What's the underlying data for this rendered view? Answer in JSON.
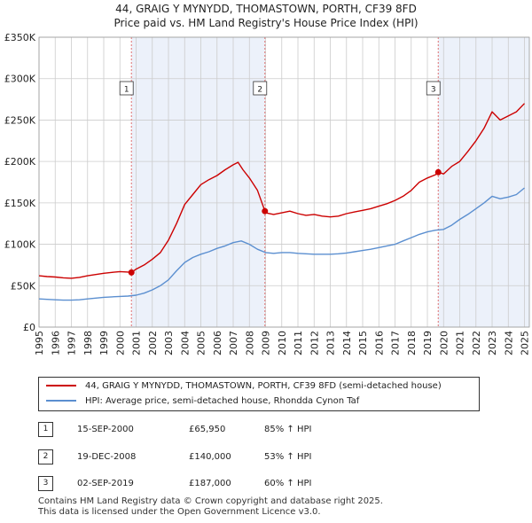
{
  "header": {
    "title_line1": "44, GRAIG Y MYNYDD, THOMASTOWN, PORTH, CF39 8FD",
    "title_line2": "Price paid vs. HM Land Registry's House Price Index (HPI)"
  },
  "colors": {
    "property": "#cc0000",
    "hpi": "#5b8fd0",
    "shade": "#dde6f5",
    "grid": "#cccccc",
    "marker": "#cc0000",
    "vline": "#e07070"
  },
  "chart_data": {
    "type": "line",
    "title": "44, GRAIG Y MYNYDD, THOMASTOWN, PORTH, CF39 8FD",
    "subtitle": "Price paid vs. HM Land Registry's House Price Index (HPI)",
    "xlabel": "",
    "ylabel": "",
    "xlim": [
      1995,
      2025.3
    ],
    "ylim": [
      0,
      350000
    ],
    "y_ticks": [
      0,
      50000,
      100000,
      150000,
      200000,
      250000,
      300000,
      350000
    ],
    "y_tick_labels": [
      "£0",
      "£50K",
      "£100K",
      "£150K",
      "£200K",
      "£250K",
      "£300K",
      "£350K"
    ],
    "x_ticks": [
      1995,
      1996,
      1997,
      1998,
      1999,
      2000,
      2001,
      2002,
      2003,
      2004,
      2005,
      2006,
      2007,
      2008,
      2009,
      2010,
      2011,
      2012,
      2013,
      2014,
      2015,
      2016,
      2017,
      2018,
      2019,
      2020,
      2021,
      2022,
      2023,
      2024,
      2025
    ],
    "grid": true,
    "series": [
      {
        "name": "44, GRAIG Y MYNYDD, THOMASTOWN, PORTH, CF39 8FD (semi-detached house)",
        "x": [
          1995.0,
          1995.5,
          1996.0,
          1996.5,
          1997.0,
          1997.5,
          1998.0,
          1998.5,
          1999.0,
          1999.5,
          2000.0,
          2000.5,
          2000.71,
          2001.0,
          2001.5,
          2002.0,
          2002.5,
          2003.0,
          2003.5,
          2004.0,
          2004.5,
          2005.0,
          2005.5,
          2006.0,
          2006.5,
          2007.0,
          2007.3,
          2007.6,
          2008.0,
          2008.5,
          2008.96,
          2009.0,
          2009.5,
          2010.0,
          2010.5,
          2011.0,
          2011.5,
          2012.0,
          2012.5,
          2013.0,
          2013.5,
          2014.0,
          2014.5,
          2015.0,
          2015.5,
          2016.0,
          2016.5,
          2017.0,
          2017.5,
          2018.0,
          2018.5,
          2019.0,
          2019.5,
          2019.67,
          2020.0,
          2020.5,
          2021.0,
          2021.5,
          2022.0,
          2022.5,
          2023.0,
          2023.5,
          2024.0,
          2024.5,
          2025.0
        ],
        "values": [
          62000,
          61000,
          60500,
          59500,
          59000,
          60000,
          62000,
          63500,
          65000,
          66000,
          67000,
          66500,
          65950,
          70000,
          75000,
          82000,
          90000,
          105000,
          125000,
          148000,
          160000,
          172000,
          178000,
          183000,
          190000,
          196000,
          199000,
          190000,
          180000,
          165000,
          140000,
          138000,
          136000,
          138000,
          140000,
          137000,
          135000,
          136000,
          134000,
          133000,
          134000,
          137000,
          139000,
          141000,
          143000,
          146000,
          149000,
          153000,
          158000,
          165000,
          175000,
          180000,
          184000,
          187000,
          185000,
          194000,
          200000,
          212000,
          225000,
          240000,
          260000,
          250000,
          255000,
          260000,
          270000
        ],
        "color": "#cc0000"
      },
      {
        "name": "HPI: Average price, semi-detached house, Rhondda Cynon Taf",
        "x": [
          1995.0,
          1995.5,
          1996.0,
          1996.5,
          1997.0,
          1997.5,
          1998.0,
          1998.5,
          1999.0,
          1999.5,
          2000.0,
          2000.5,
          2001.0,
          2001.5,
          2002.0,
          2002.5,
          2003.0,
          2003.5,
          2004.0,
          2004.5,
          2005.0,
          2005.5,
          2006.0,
          2006.5,
          2007.0,
          2007.5,
          2008.0,
          2008.5,
          2009.0,
          2009.5,
          2010.0,
          2010.5,
          2011.0,
          2011.5,
          2012.0,
          2012.5,
          2013.0,
          2013.5,
          2014.0,
          2014.5,
          2015.0,
          2015.5,
          2016.0,
          2016.5,
          2017.0,
          2017.5,
          2018.0,
          2018.5,
          2019.0,
          2019.5,
          2020.0,
          2020.5,
          2021.0,
          2021.5,
          2022.0,
          2022.5,
          2023.0,
          2023.5,
          2024.0,
          2024.5,
          2025.0
        ],
        "values": [
          34000,
          33500,
          33000,
          32500,
          32500,
          33000,
          34000,
          35000,
          36000,
          36500,
          37000,
          37500,
          38500,
          41000,
          45000,
          50000,
          57000,
          68000,
          78000,
          84000,
          88000,
          91000,
          95000,
          98000,
          102000,
          104000,
          100000,
          94000,
          90000,
          89000,
          90000,
          90000,
          89000,
          88500,
          88000,
          88000,
          88000,
          88500,
          89500,
          91000,
          92500,
          94000,
          96000,
          98000,
          100000,
          104000,
          108000,
          112000,
          115000,
          117000,
          118000,
          123000,
          130000,
          136000,
          143000,
          150000,
          158000,
          155000,
          157000,
          160000,
          168000
        ],
        "color": "#5b8fd0"
      }
    ],
    "sales": [
      {
        "label": "1",
        "x": 2000.71,
        "value": 65950
      },
      {
        "label": "2",
        "x": 2008.96,
        "value": 140000
      },
      {
        "label": "3",
        "x": 2019.67,
        "value": 187000
      }
    ],
    "shaded_ranges": [
      [
        2000.71,
        2008.96
      ],
      [
        2019.67,
        2025.3
      ]
    ]
  },
  "legend": {
    "property_label": "44, GRAIG Y MYNYDD, THOMASTOWN, PORTH, CF39 8FD (semi-detached house)",
    "hpi_label": "HPI: Average price, semi-detached house, Rhondda Cynon Taf"
  },
  "sales_table": [
    {
      "num": "1",
      "date": "15-SEP-2000",
      "price": "£65,950",
      "hpi": "85% ↑ HPI"
    },
    {
      "num": "2",
      "date": "19-DEC-2008",
      "price": "£140,000",
      "hpi": "53% ↑ HPI"
    },
    {
      "num": "3",
      "date": "02-SEP-2019",
      "price": "£187,000",
      "hpi": "60% ↑ HPI"
    }
  ],
  "footer": {
    "line1": "Contains HM Land Registry data © Crown copyright and database right 2025.",
    "line2": "This data is licensed under the Open Government Licence v3.0."
  }
}
